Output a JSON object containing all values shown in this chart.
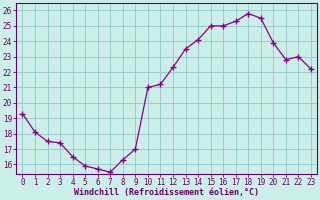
{
  "x": [
    0,
    1,
    2,
    3,
    4,
    5,
    6,
    7,
    8,
    9,
    10,
    11,
    12,
    13,
    14,
    15,
    16,
    17,
    18,
    19,
    20,
    21,
    22,
    23
  ],
  "y": [
    19.3,
    18.1,
    17.5,
    17.4,
    16.5,
    15.9,
    15.7,
    15.5,
    16.3,
    17.0,
    21.0,
    21.2,
    22.3,
    23.5,
    24.1,
    25.0,
    25.0,
    25.3,
    25.8,
    25.5,
    23.9,
    22.8,
    23.0,
    22.2
  ],
  "line_color": "#880088",
  "marker": "+",
  "marker_size": 4,
  "marker_lw": 1.0,
  "background_color": "#cceee8",
  "grid_color": "#99cccc",
  "xlabel": "Windchill (Refroidissement éolien,°C)",
  "xlim": [
    -0.5,
    23.5
  ],
  "ylim": [
    15.4,
    26.5
  ],
  "yticks": [
    16,
    17,
    18,
    19,
    20,
    21,
    22,
    23,
    24,
    25,
    26
  ],
  "xtick_labels": [
    "0",
    "1",
    "2",
    "3",
    "4",
    "5",
    "6",
    "7",
    "8",
    "9",
    "10",
    "11",
    "12",
    "13",
    "14",
    "15",
    "16",
    "17",
    "18",
    "19",
    "20",
    "21",
    "22",
    "23"
  ],
  "tick_color": "#660066",
  "spine_color": "#660066",
  "xlabel_fontsize": 6.0,
  "tick_fontsize": 5.5
}
